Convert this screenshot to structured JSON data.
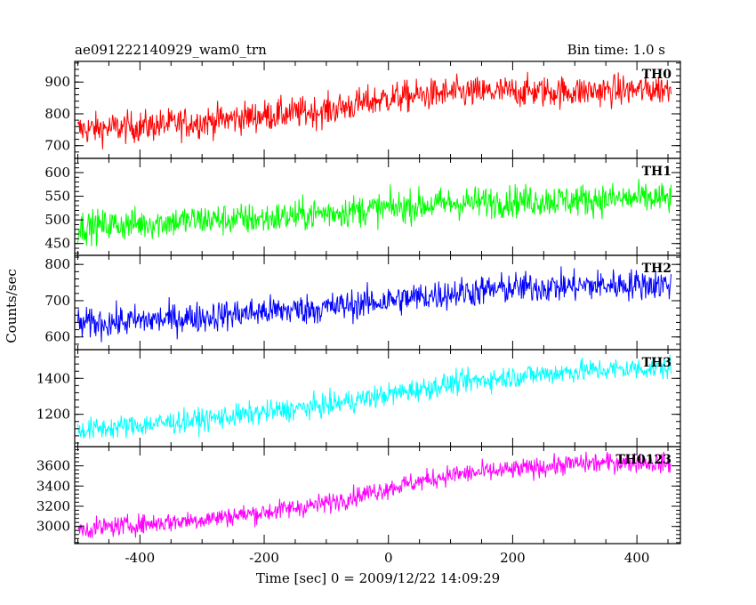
{
  "chart_data": {
    "type": "line",
    "title": "ae091222140929_wam0_trn",
    "bin_time_label": "Bin time: 1.0 s",
    "xlabel": "Time [sec] 0 = 2009/12/22 14:09:29",
    "ylabel": "Counts/sec",
    "xlim": [
      -505,
      470
    ],
    "xticks": [
      -400,
      -200,
      0,
      200,
      400
    ],
    "x_range": [
      -500,
      455
    ],
    "grid": false,
    "panels": [
      {
        "name": "TH0",
        "color": "#ff0000",
        "ylim": [
          660,
          965
        ],
        "yticks": [
          700,
          800,
          900
        ],
        "points": [
          [
            -500,
            750
          ],
          [
            -400,
            760
          ],
          [
            -300,
            775
          ],
          [
            -200,
            795
          ],
          [
            -100,
            810
          ],
          [
            0,
            850
          ],
          [
            100,
            865
          ],
          [
            200,
            870
          ],
          [
            300,
            870
          ],
          [
            400,
            875
          ],
          [
            455,
            880
          ]
        ],
        "noise": 35
      },
      {
        "name": "TH1",
        "color": "#00ff00",
        "ylim": [
          425,
          630
        ],
        "yticks": [
          450,
          500,
          550,
          600
        ],
        "points": [
          [
            -500,
            485
          ],
          [
            -400,
            492
          ],
          [
            -300,
            500
          ],
          [
            -200,
            502
          ],
          [
            -100,
            515
          ],
          [
            0,
            525
          ],
          [
            100,
            535
          ],
          [
            200,
            540
          ],
          [
            300,
            542
          ],
          [
            400,
            545
          ],
          [
            455,
            545
          ]
        ],
        "noise": 24
      },
      {
        "name": "TH2",
        "color": "#0000ff",
        "ylim": [
          565,
          825
        ],
        "yticks": [
          600,
          700,
          800
        ],
        "points": [
          [
            -500,
            635
          ],
          [
            -400,
            645
          ],
          [
            -300,
            655
          ],
          [
            -200,
            670
          ],
          [
            -100,
            680
          ],
          [
            0,
            700
          ],
          [
            100,
            720
          ],
          [
            200,
            735
          ],
          [
            300,
            740
          ],
          [
            400,
            745
          ],
          [
            455,
            745
          ]
        ],
        "noise": 30
      },
      {
        "name": "TH3",
        "color": "#00ffff",
        "ylim": [
          1020,
          1560
        ],
        "yticks": [
          1200,
          1400
        ],
        "points": [
          [
            -500,
            1110
          ],
          [
            -400,
            1140
          ],
          [
            -300,
            1170
          ],
          [
            -200,
            1210
          ],
          [
            -100,
            1250
          ],
          [
            0,
            1310
          ],
          [
            100,
            1370
          ],
          [
            200,
            1410
          ],
          [
            300,
            1440
          ],
          [
            400,
            1455
          ],
          [
            455,
            1460
          ]
        ],
        "noise": 45
      },
      {
        "name": "TH0123",
        "color": "#ff00ff",
        "ylim": [
          2830,
          3790
        ],
        "yticks": [
          3000,
          3200,
          3400,
          3600
        ],
        "points": [
          [
            -500,
            2970
          ],
          [
            -400,
            3020
          ],
          [
            -300,
            3070
          ],
          [
            -200,
            3140
          ],
          [
            -100,
            3230
          ],
          [
            0,
            3380
          ],
          [
            100,
            3510
          ],
          [
            200,
            3560
          ],
          [
            300,
            3620
          ],
          [
            400,
            3640
          ],
          [
            455,
            3620
          ]
        ],
        "noise": 70
      }
    ]
  }
}
